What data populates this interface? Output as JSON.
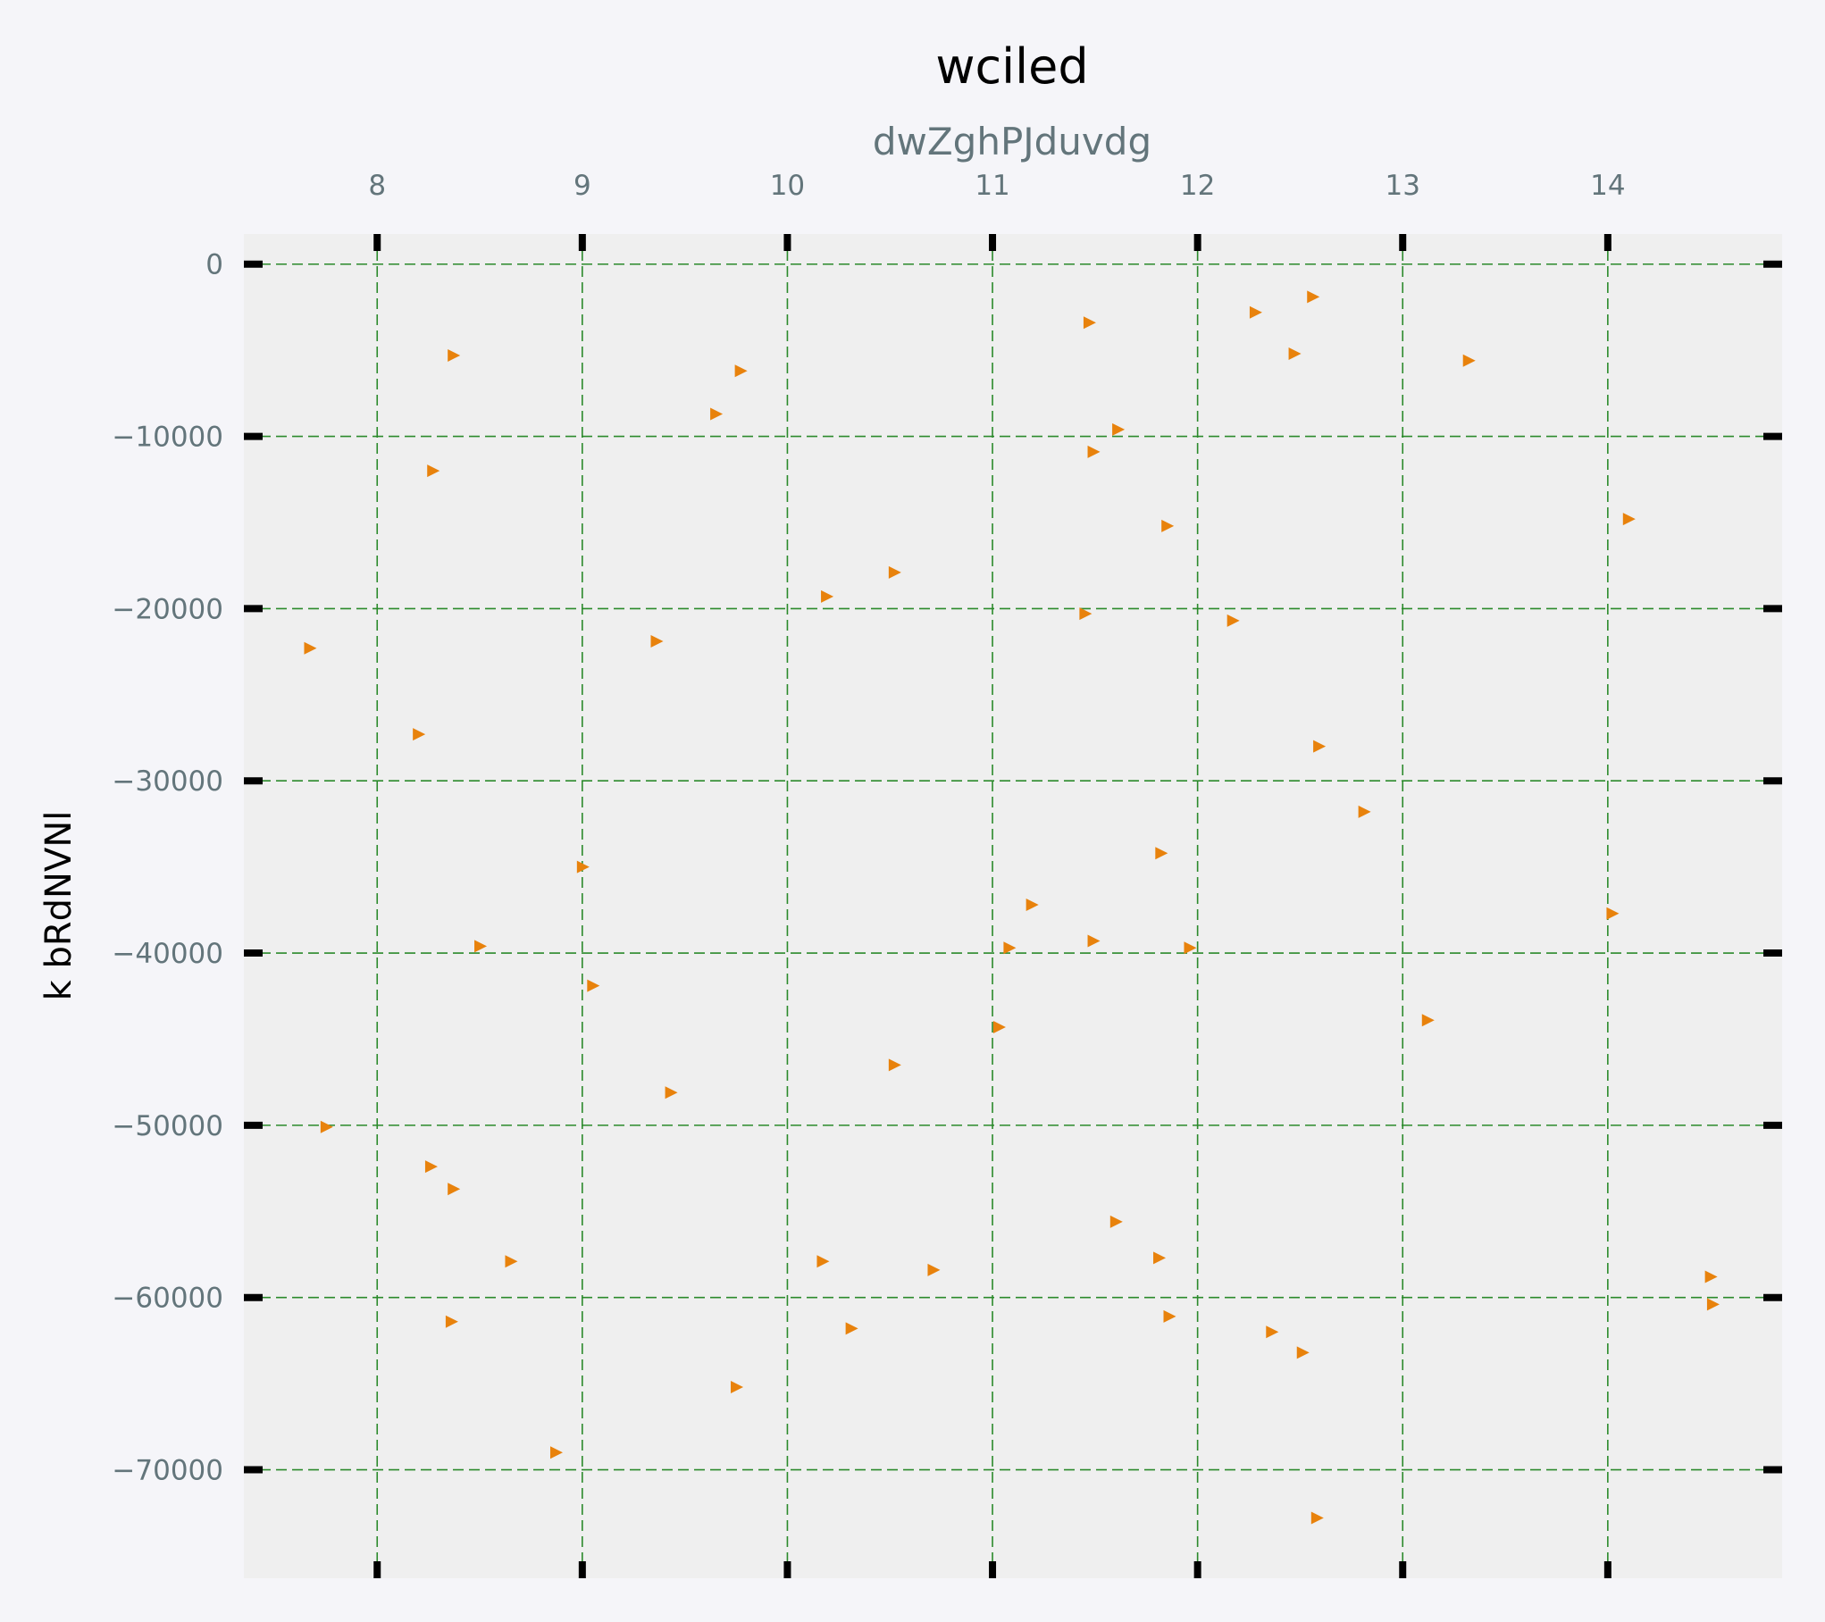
{
  "chart_data": {
    "type": "scatter",
    "title": "wciled",
    "xlabel": "dwZghPJduvdg",
    "ylabel": "k bRdNVNl",
    "x_axis_position": "top",
    "xlim": [
      7.35,
      14.85
    ],
    "ylim": [
      -76300,
      1750
    ],
    "x_ticks": [
      8,
      9,
      10,
      11,
      12,
      13,
      14
    ],
    "y_ticks": [
      0,
      -10000,
      -20000,
      -30000,
      -40000,
      -50000,
      -60000,
      -70000
    ],
    "x_tick_labels": [
      "8",
      "9",
      "10",
      "11",
      "12",
      "13",
      "14"
    ],
    "y_tick_labels": [
      "0",
      "−10000",
      "−20000",
      "−30000",
      "−40000",
      "−50000",
      "−60000",
      "−70000"
    ],
    "grid": true,
    "colors": {
      "background": "#f5f5f9",
      "plot_background": "#efefef",
      "grid": "#2b8a2b",
      "marker": "#e8820c",
      "tick_mark": "#000000"
    },
    "marker_shape": "triangle-right",
    "series": [
      {
        "points": [
          [
            12.56,
            -1900
          ],
          [
            12.28,
            -2800
          ],
          [
            11.47,
            -3400
          ],
          [
            8.37,
            -5300
          ],
          [
            12.47,
            -5200
          ],
          [
            13.32,
            -5600
          ],
          [
            9.77,
            -6200
          ],
          [
            9.65,
            -8700
          ],
          [
            11.61,
            -9600
          ],
          [
            11.49,
            -10900
          ],
          [
            8.27,
            -12000
          ],
          [
            14.1,
            -14800
          ],
          [
            11.85,
            -15200
          ],
          [
            10.52,
            -17900
          ],
          [
            10.19,
            -19300
          ],
          [
            11.45,
            -20300
          ],
          [
            12.17,
            -20700
          ],
          [
            9.36,
            -21900
          ],
          [
            7.67,
            -22300
          ],
          [
            8.2,
            -27300
          ],
          [
            12.59,
            -28000
          ],
          [
            12.81,
            -31800
          ],
          [
            11.82,
            -34200
          ],
          [
            9.0,
            -35000
          ],
          [
            11.19,
            -37200
          ],
          [
            14.02,
            -37700
          ],
          [
            11.49,
            -39300
          ],
          [
            8.5,
            -39600
          ],
          [
            11.08,
            -39700
          ],
          [
            11.96,
            -39700
          ],
          [
            9.05,
            -41900
          ],
          [
            13.12,
            -43900
          ],
          [
            11.03,
            -44300
          ],
          [
            10.52,
            -46500
          ],
          [
            9.43,
            -48100
          ],
          [
            7.75,
            -50100
          ],
          [
            8.26,
            -52400
          ],
          [
            8.37,
            -53700
          ],
          [
            11.6,
            -55600
          ],
          [
            11.81,
            -57700
          ],
          [
            8.65,
            -57900
          ],
          [
            10.17,
            -57900
          ],
          [
            10.71,
            -58400
          ],
          [
            14.5,
            -58800
          ],
          [
            14.51,
            -60400
          ],
          [
            8.36,
            -61400
          ],
          [
            11.86,
            -61100
          ],
          [
            10.31,
            -61800
          ],
          [
            12.36,
            -62000
          ],
          [
            12.51,
            -63200
          ],
          [
            9.75,
            -65200
          ],
          [
            8.87,
            -69000
          ],
          [
            12.58,
            -72800
          ]
        ]
      }
    ]
  }
}
